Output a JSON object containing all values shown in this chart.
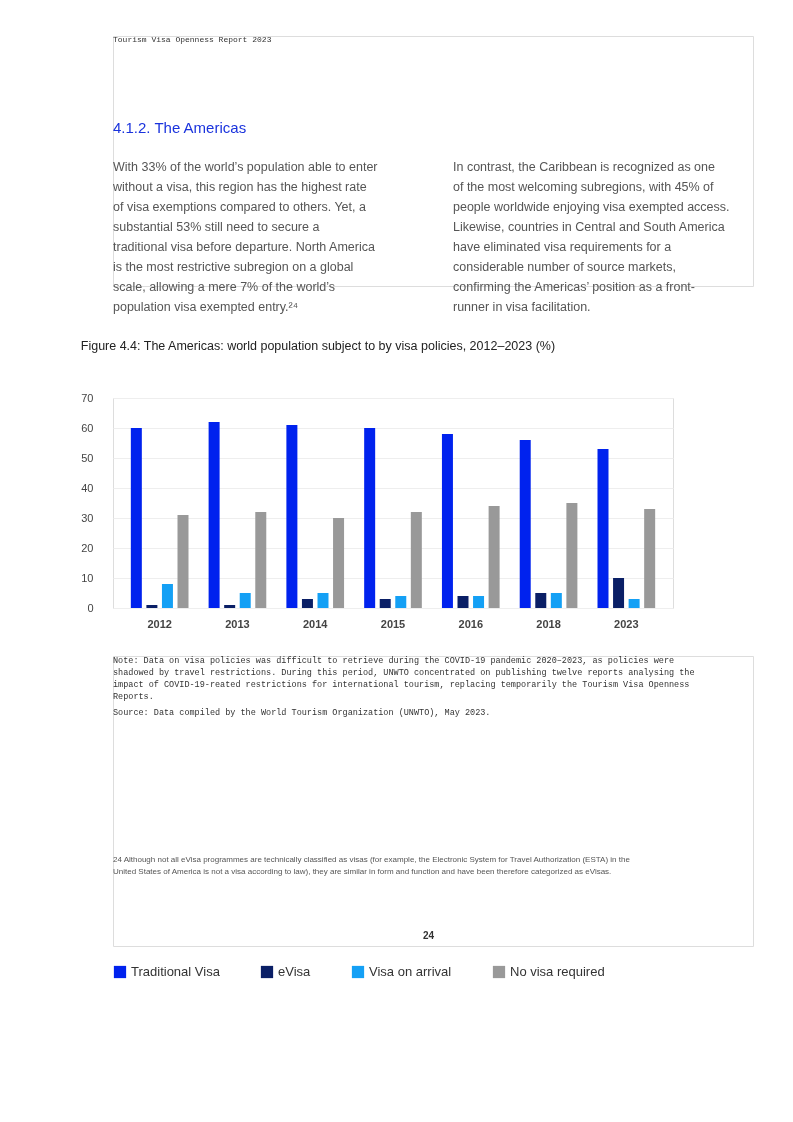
{
  "chart_data": {
    "type": "bar",
    "title": "Figure 4.4:      The Americas: world population subject to by visa policies, 2012–2023 (%)",
    "categories": [
      "2012",
      "2013",
      "2014",
      "2015",
      "2016",
      "2018",
      "2023"
    ],
    "series": [
      {
        "name": "Traditional Visa",
        "color": "#0022ee",
        "values": [
          60,
          62,
          61,
          60,
          58,
          56,
          53
        ]
      },
      {
        "name": "eVisa",
        "color": "#0a1f66",
        "values": [
          1,
          1,
          3,
          3,
          4,
          5,
          10
        ]
      },
      {
        "name": "Visa on arrival",
        "color": "#14a0f5",
        "values": [
          8,
          5,
          5,
          4,
          4,
          5,
          3
        ]
      },
      {
        "name": "No visa required",
        "color": "#999999",
        "values": [
          31,
          32,
          30,
          32,
          34,
          35,
          33
        ]
      }
    ],
    "ylim": [
      0,
      70
    ],
    "yticks": [
      0,
      10,
      20,
      30,
      40,
      50,
      60,
      70
    ],
    "grid": "y",
    "legend": "bottom",
    "annotations": [
      "Tourism Visa Openness Report 2023",
      "4.1.2.  The Americas",
      "With 33% of the world’s population able to enter without a visa, this region has the highest rate of visa exemptions compared to others. Yet, a substantial 53% still need to secure a traditional visa before departure. North America is the most restrictive subregion on a global scale, allowing a mere 7% of the world’s population visa exempted entry.²⁴",
      "In contrast, the Caribbean is recognized as one of the most welcoming subregions, with 45% of people worldwide enjoying visa exempted access. Likewise, countries in Central and South America have eliminated visa requirements for a considerable number of source markets, confirming the Americas’ position as a front-runner in visa facilitation.",
      "Note:   Data on visa policies was difficult to retrieve during the COVID-19 pandemic 2020–2023, as policies were shadowed by travel restrictions. During this period, UNWTO concentrated on publishing twelve reports analysing the impact of COVID-19-reated restrictions for international tourism, replacing temporarily the Tourism Visa Openness Reports.",
      "Source: Data compiled by the World Tourism Organization (UNWTO), May 2023.",
      "24 Although not all eVisa programmes are technically classified as visas (for example, the Electronic System for Travel Authorization (ESTA) in the United States of America is not a visa according to law), they are similar in form and function and have been therefore categorized as eVisas.",
      "24"
    ]
  }
}
